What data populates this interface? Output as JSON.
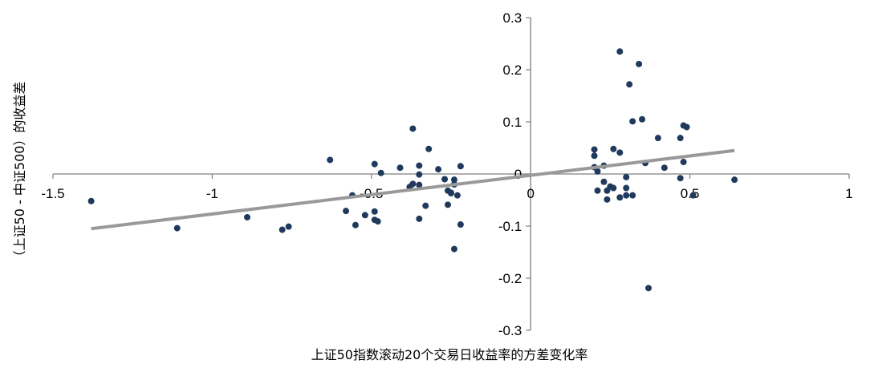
{
  "chart_data": {
    "type": "scatter",
    "title": "",
    "xlabel": "上证50指数滚动20个交易日收益率的方差变化率",
    "ylabel": "（上证50 - 中证500）的收益差",
    "xlim": [
      -1.5,
      1
    ],
    "ylim": [
      -0.3,
      0.3
    ],
    "x_ticks": [
      -1.5,
      -1,
      -0.5,
      0,
      0.5,
      1
    ],
    "x_tick_labels": [
      "-1.5",
      "-1",
      "-0.5",
      "0",
      "0.5",
      "1"
    ],
    "y_ticks": [
      -0.3,
      -0.2,
      -0.1,
      0,
      0.1,
      0.2,
      0.3
    ],
    "y_tick_labels": [
      "-0.3",
      "-0.2",
      "-0.1",
      "0",
      "0.1",
      "0.2",
      "0.3"
    ],
    "grid": false,
    "legend": "none",
    "colors": {
      "points": "#1f3a5c",
      "trendline": "#999999",
      "axes": "#7f7f7f"
    },
    "points": [
      {
        "x": -1.38,
        "y": -0.052
      },
      {
        "x": -1.11,
        "y": -0.104
      },
      {
        "x": -0.89,
        "y": -0.083
      },
      {
        "x": -0.78,
        "y": -0.107
      },
      {
        "x": -0.76,
        "y": -0.101
      },
      {
        "x": -0.63,
        "y": 0.027
      },
      {
        "x": -0.58,
        "y": -0.071
      },
      {
        "x": -0.56,
        "y": -0.041
      },
      {
        "x": -0.55,
        "y": -0.098
      },
      {
        "x": -0.52,
        "y": -0.079
      },
      {
        "x": -0.49,
        "y": 0.019
      },
      {
        "x": -0.49,
        "y": -0.072
      },
      {
        "x": -0.49,
        "y": -0.088
      },
      {
        "x": -0.48,
        "y": -0.091
      },
      {
        "x": -0.47,
        "y": 0.002
      },
      {
        "x": -0.41,
        "y": 0.012
      },
      {
        "x": -0.38,
        "y": -0.025
      },
      {
        "x": -0.37,
        "y": -0.019
      },
      {
        "x": -0.37,
        "y": 0.087
      },
      {
        "x": -0.35,
        "y": 0.016
      },
      {
        "x": -0.35,
        "y": -0.001
      },
      {
        "x": -0.35,
        "y": -0.021
      },
      {
        "x": -0.35,
        "y": -0.086
      },
      {
        "x": -0.33,
        "y": -0.061
      },
      {
        "x": -0.32,
        "y": 0.048
      },
      {
        "x": -0.29,
        "y": 0.009
      },
      {
        "x": -0.27,
        "y": -0.01
      },
      {
        "x": -0.26,
        "y": -0.032
      },
      {
        "x": -0.26,
        "y": -0.059
      },
      {
        "x": -0.25,
        "y": -0.037
      },
      {
        "x": -0.25,
        "y": -0.036
      },
      {
        "x": -0.24,
        "y": -0.011
      },
      {
        "x": -0.24,
        "y": -0.02
      },
      {
        "x": -0.24,
        "y": -0.144
      },
      {
        "x": -0.23,
        "y": -0.041
      },
      {
        "x": -0.22,
        "y": 0.015
      },
      {
        "x": -0.22,
        "y": -0.097
      },
      {
        "x": 0.2,
        "y": 0.047
      },
      {
        "x": 0.2,
        "y": 0.035
      },
      {
        "x": 0.2,
        "y": 0.013
      },
      {
        "x": 0.21,
        "y": 0.005
      },
      {
        "x": 0.21,
        "y": -0.032
      },
      {
        "x": 0.23,
        "y": 0.016
      },
      {
        "x": 0.23,
        "y": -0.015
      },
      {
        "x": 0.24,
        "y": -0.032
      },
      {
        "x": 0.24,
        "y": -0.049
      },
      {
        "x": 0.25,
        "y": -0.024
      },
      {
        "x": 0.26,
        "y": 0.048
      },
      {
        "x": 0.26,
        "y": -0.027
      },
      {
        "x": 0.28,
        "y": 0.235
      },
      {
        "x": 0.28,
        "y": 0.041
      },
      {
        "x": 0.28,
        "y": -0.045
      },
      {
        "x": 0.3,
        "y": -0.006
      },
      {
        "x": 0.3,
        "y": -0.027
      },
      {
        "x": 0.3,
        "y": -0.041
      },
      {
        "x": 0.31,
        "y": 0.172
      },
      {
        "x": 0.32,
        "y": 0.101
      },
      {
        "x": 0.32,
        "y": -0.041
      },
      {
        "x": 0.34,
        "y": 0.211
      },
      {
        "x": 0.35,
        "y": 0.105
      },
      {
        "x": 0.36,
        "y": 0.021
      },
      {
        "x": 0.37,
        "y": -0.219
      },
      {
        "x": 0.4,
        "y": 0.069
      },
      {
        "x": 0.42,
        "y": 0.012
      },
      {
        "x": 0.47,
        "y": 0.069
      },
      {
        "x": 0.47,
        "y": -0.008
      },
      {
        "x": 0.48,
        "y": 0.093
      },
      {
        "x": 0.48,
        "y": 0.023
      },
      {
        "x": 0.49,
        "y": 0.09
      },
      {
        "x": 0.51,
        "y": -0.041
      },
      {
        "x": 0.64,
        "y": -0.011
      }
    ],
    "trendline": {
      "type": "linear",
      "from": {
        "x": -1.38,
        "y": -0.105
      },
      "to": {
        "x": 0.64,
        "y": 0.045
      }
    }
  }
}
